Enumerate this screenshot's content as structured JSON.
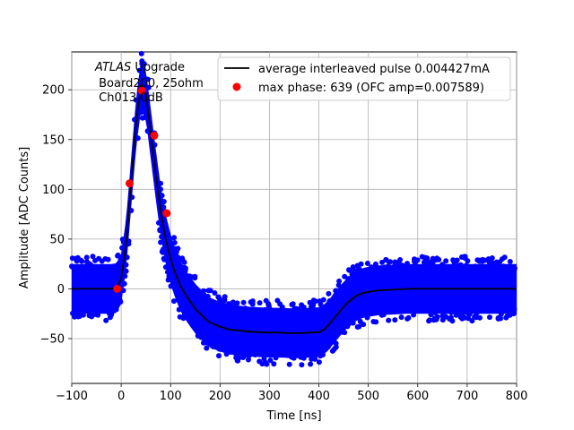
{
  "chart_data": {
    "type": "scatter",
    "xlabel": "Time [ns]",
    "ylabel": "Amplitude [ADC Counts]",
    "xlim": [
      -100,
      800
    ],
    "ylim": [
      -95,
      238
    ],
    "xticks": [
      -100,
      0,
      100,
      200,
      300,
      400,
      500,
      600,
      700,
      800
    ],
    "yticks": [
      -50,
      0,
      50,
      100,
      150,
      200
    ],
    "xtick_labels": [
      "−100",
      "0",
      "100",
      "200",
      "300",
      "400",
      "500",
      "600",
      "700",
      "800"
    ],
    "ytick_labels": [
      "−50",
      "0",
      "50",
      "100",
      "150",
      "200"
    ],
    "grid": true,
    "legend_position": "top-right",
    "annotation": {
      "line1_italic": "ATLAS",
      "line1_rest": " Upgrade",
      "line2": " Board200, 25ohm",
      "line3": " Ch013 0dB"
    },
    "series": [
      {
        "name": "average interleaved pulse 0.004427mA",
        "kind": "line",
        "color": "#000000",
        "x": [
          -100,
          -20,
          -10,
          0,
          10,
          20,
          30,
          40,
          50,
          60,
          70,
          80,
          90,
          100,
          110,
          120,
          130,
          140,
          150,
          160,
          170,
          180,
          190,
          200,
          220,
          240,
          260,
          280,
          300,
          320,
          340,
          360,
          380,
          400,
          410,
          420,
          430,
          440,
          450,
          460,
          470,
          480,
          490,
          500,
          520,
          540,
          560,
          580,
          600,
          650,
          700,
          750,
          800
        ],
        "y": [
          0,
          0,
          0.5,
          10,
          45,
          105,
          165,
          205,
          195,
          155,
          115,
          78,
          50,
          30,
          15,
          3,
          -6,
          -13,
          -20,
          -25,
          -30,
          -34,
          -36,
          -38,
          -41,
          -42,
          -43,
          -43.5,
          -44,
          -44,
          -44.5,
          -44.5,
          -44,
          -43.5,
          -41,
          -36,
          -30,
          -24,
          -18,
          -13,
          -9,
          -6,
          -4,
          -3,
          -1.5,
          -1,
          -0.5,
          0,
          0,
          0,
          0,
          0,
          0
        ]
      },
      {
        "name": "max phase: 639 (OFC amp=0.007589)",
        "kind": "markers",
        "color": "#ff0000",
        "x": [
          -8,
          17,
          42,
          67,
          92
        ],
        "y": [
          0,
          106,
          199,
          154,
          76
        ]
      },
      {
        "name": "",
        "kind": "scatter-band",
        "color": "#0000ff",
        "noise_halfwidth": 25
      }
    ]
  }
}
